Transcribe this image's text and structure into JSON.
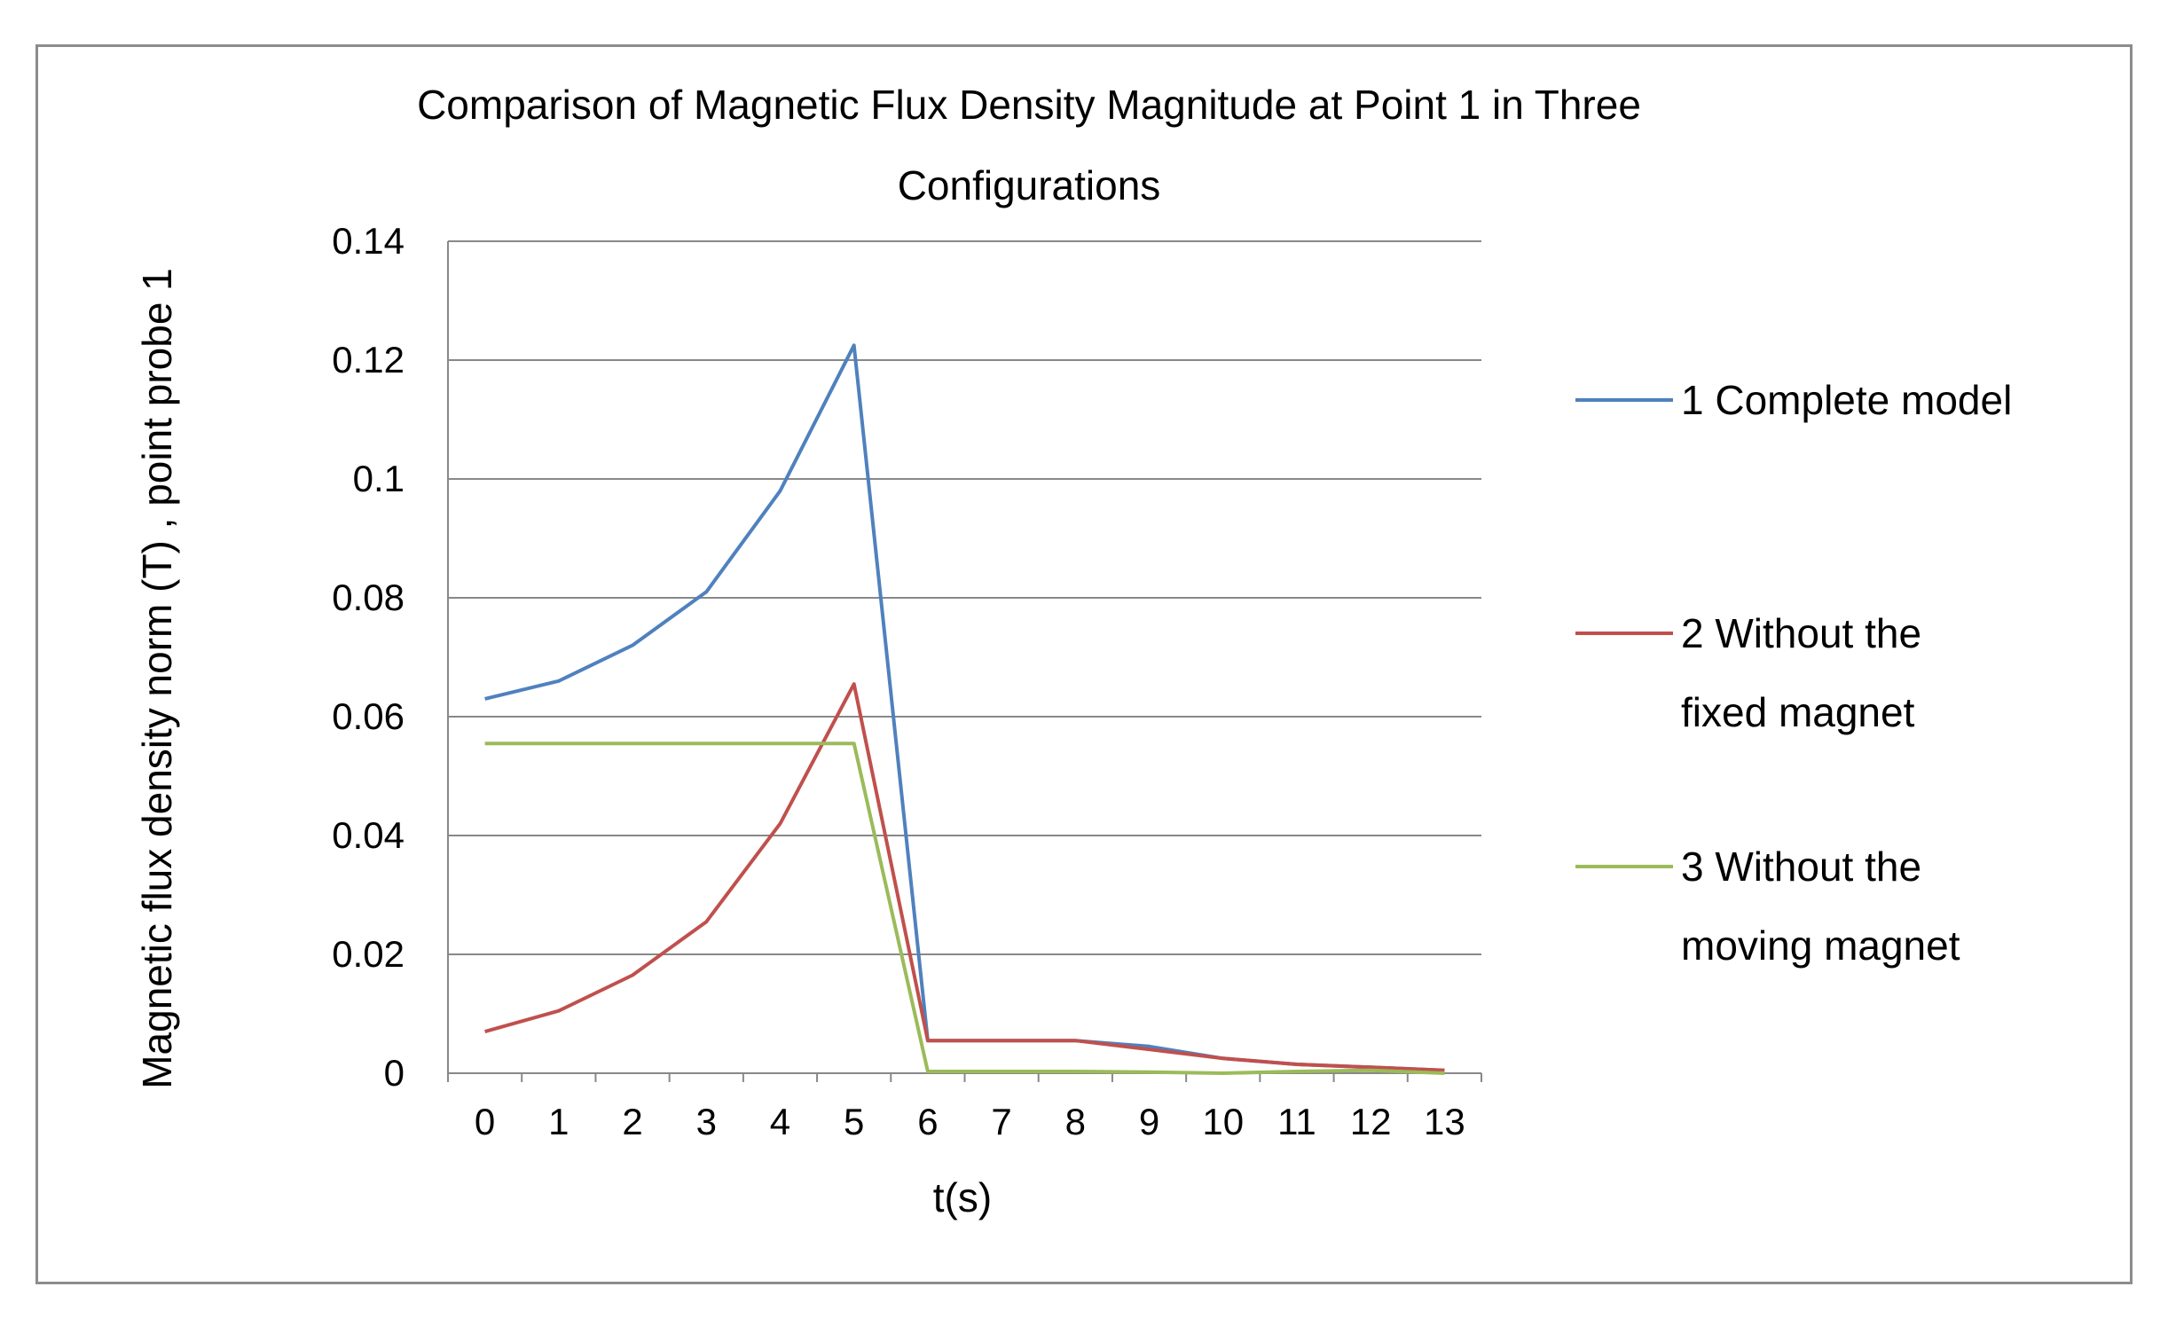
{
  "chart_data": {
    "type": "line",
    "title_lines": [
      "Comparison of Magnetic Flux Density Magnitude at Point 1 in Three",
      "Configurations"
    ],
    "xlabel": "t(s)",
    "ylabel": "Magnetic flux density norm (T) , point probe 1",
    "x": [
      0,
      1,
      2,
      3,
      4,
      5,
      6,
      7,
      8,
      9,
      10,
      11,
      12,
      13
    ],
    "ylim": [
      0,
      0.14
    ],
    "yticks": [
      0,
      0.02,
      0.04,
      0.06,
      0.08,
      0.1,
      0.12,
      0.14
    ],
    "ytick_labels": [
      "0",
      "0.02",
      "0.04",
      "0.06",
      "0.08",
      "0.1",
      "0.12",
      "0.14"
    ],
    "grid": "horizontal",
    "legend_position": "right",
    "series": [
      {
        "name_lines": [
          "1 Complete model"
        ],
        "color": "#4f81bd",
        "values": [
          0.063,
          0.066,
          0.072,
          0.081,
          0.098,
          0.1225,
          0.0055,
          0.0055,
          0.0055,
          0.0045,
          0.0025,
          0.0015,
          0.001,
          0.0005
        ]
      },
      {
        "name_lines": [
          "2 Without the",
          "fixed magnet"
        ],
        "color": "#c0504d",
        "values": [
          0.007,
          0.0105,
          0.0165,
          0.0255,
          0.042,
          0.0655,
          0.0055,
          0.0055,
          0.0055,
          0.004,
          0.0025,
          0.0015,
          0.001,
          0.0005
        ]
      },
      {
        "name_lines": [
          "3 Without the",
          "moving magnet"
        ],
        "color": "#9bbb59",
        "values": [
          0.0555,
          0.0555,
          0.0555,
          0.0555,
          0.0555,
          0.0555,
          0.0003,
          0.0003,
          0.0003,
          0.0002,
          0.0,
          0.0003,
          0.0005,
          0.0
        ]
      }
    ]
  }
}
